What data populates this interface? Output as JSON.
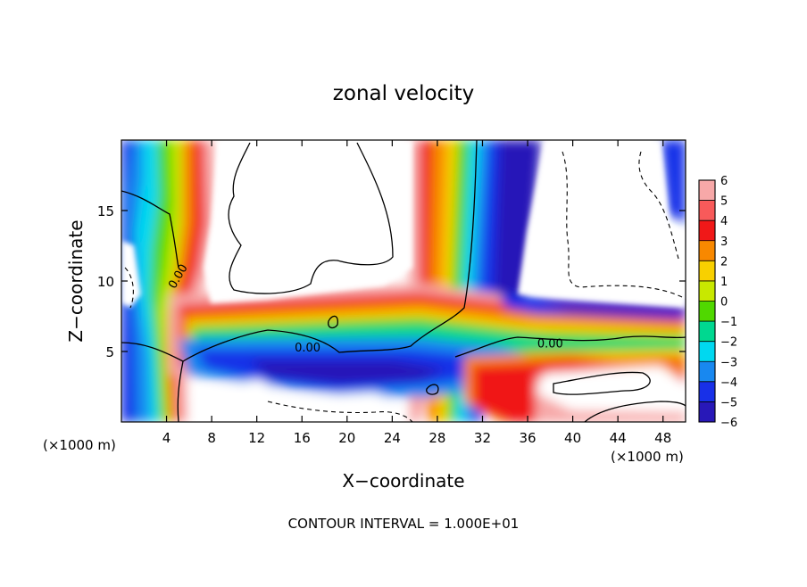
{
  "chart_data": {
    "type": "heatmap",
    "title": "zonal velocity",
    "xlabel": "X−coordinate",
    "ylabel": "Z−coordinate",
    "x_unit_left": "(×1000 m)",
    "x_unit_right": "(×1000 m)",
    "footer": "CONTOUR INTERVAL = 1.000E+01",
    "xlim": [
      0,
      50
    ],
    "ylim": [
      0,
      20
    ],
    "x_ticks": [
      4,
      8,
      12,
      16,
      20,
      24,
      28,
      32,
      36,
      40,
      44,
      48
    ],
    "x_tick_labels": [
      "4",
      "8",
      "12",
      "16",
      "20",
      "24",
      "28",
      "32",
      "36",
      "40",
      "44",
      "48"
    ],
    "y_ticks": [
      5,
      10,
      15
    ],
    "y_tick_labels": [
      "5",
      "10",
      "15"
    ],
    "colorbar": {
      "levels": [
        6,
        5,
        4,
        3,
        2,
        1,
        0,
        -1,
        -2,
        -3,
        -4,
        -5,
        -6
      ],
      "labels": [
        "6",
        "5",
        "4",
        "3",
        "2",
        "1",
        "0",
        "−1",
        "−2",
        "−3",
        "−4",
        "−5",
        "−6"
      ],
      "colors": [
        "#f7a8a8",
        "#f85a5a",
        "#f01818",
        "#f88800",
        "#f8d000",
        "#c8e800",
        "#50d800",
        "#00d890",
        "#00d8f0",
        "#1888f0",
        "#1830e8",
        "#2818b8",
        "#6018a8"
      ]
    },
    "contour_labels": [
      {
        "text": "0.00",
        "x": 5.3,
        "y": 10.2
      },
      {
        "text": "0.00",
        "x": 16.5,
        "y": 5.0
      },
      {
        "text": "0.00",
        "x": 38.0,
        "y": 5.3
      }
    ]
  }
}
